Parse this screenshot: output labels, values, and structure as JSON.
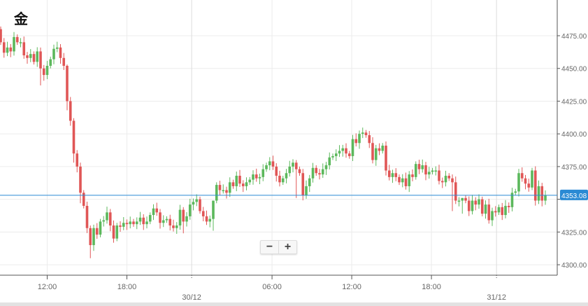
{
  "title": "金",
  "zoom_controls": {
    "minus": "−",
    "plus": "+"
  },
  "colors": {
    "up": "#5cb85c",
    "down": "#e05656",
    "price_line": "#2a8ad4",
    "grid": "#ececec",
    "axis": "#555555",
    "label": "#666666"
  },
  "chart_data": {
    "type": "candlestick",
    "interval": "15 min",
    "ylim": [
      4290,
      4480
    ],
    "yticks": [
      4300,
      4325,
      4350,
      4375,
      4400,
      4425,
      4450,
      4475
    ],
    "ytick_labels": [
      "4300.00",
      "4325.00",
      "4350.00",
      "4375.00",
      "4400.00",
      "4425.00",
      "4450.00",
      "4475.00"
    ],
    "xticks": [
      {
        "label": "12:00",
        "candle": 14,
        "major": false
      },
      {
        "label": "18:00",
        "candle": 38,
        "major": false
      },
      {
        "label": "30/12",
        "candle": 57.5,
        "major": true
      },
      {
        "label": "06:00",
        "candle": 81.7,
        "major": false
      },
      {
        "label": "12:00",
        "candle": 105.7,
        "major": false
      },
      {
        "label": "18:00",
        "candle": 129.7,
        "major": false
      },
      {
        "label": "31/12",
        "candle": 149.3,
        "major": true
      }
    ],
    "current_price": 4353.08,
    "current_price_label": "4353.08",
    "first_open": 4480,
    "closes": [
      4470,
      4462,
      4466,
      4463,
      4474,
      4470,
      4470,
      4460,
      4458,
      4461,
      4455,
      4463,
      4450,
      4445,
      4452,
      4457,
      4465,
      4466,
      4458,
      4452,
      4425,
      4410,
      4385,
      4375,
      4355,
      4345,
      4328,
      4315,
      4328,
      4323,
      4333,
      4334,
      4340,
      4330,
      4320,
      4330,
      4329,
      4332,
      4331,
      4333,
      4331,
      4333,
      4336,
      4331,
      4333,
      4338,
      4343,
      4340,
      4332,
      4334,
      4335,
      4330,
      4328,
      4330,
      4342,
      4333,
      4337,
      4346,
      4348,
      4350,
      4341,
      4337,
      4333,
      4335,
      4349,
      4361,
      4357,
      4357,
      4355,
      4363,
      4360,
      4368,
      4362,
      4360,
      4363,
      4365,
      4369,
      4366,
      4367,
      4373,
      4376,
      4379,
      4375,
      4368,
      4363,
      4366,
      4370,
      4375,
      4378,
      4373,
      4370,
      4353,
      4360,
      4366,
      4374,
      4370,
      4369,
      4373,
      4376,
      4382,
      4383,
      4385,
      4387,
      4389,
      4385,
      4383,
      4396,
      4393,
      4400,
      4401,
      4399,
      4393,
      4380,
      4389,
      4387,
      4391,
      4372,
      4367,
      4370,
      4367,
      4363,
      4366,
      4360,
      4369,
      4367,
      4377,
      4373,
      4376,
      4369,
      4371,
      4372,
      4372,
      4364,
      4363,
      4368,
      4366,
      4363,
      4349,
      4349,
      4351,
      4349,
      4341,
      4349,
      4346,
      4350,
      4339,
      4346,
      4334,
      4341,
      4340,
      4344,
      4338,
      4345,
      4344,
      4355,
      4356,
      4370,
      4366,
      4362,
      4359,
      4372,
      4349,
      4360,
      4349,
      4353
    ],
    "wicks": {
      "12": [
        4466,
        4437
      ],
      "27": [
        4330,
        4305
      ],
      "20": [
        4453,
        4418
      ],
      "22": [
        4412,
        4378
      ],
      "24": [
        4378,
        4347
      ],
      "89": [
        4380,
        4351
      ],
      "55": [
        4344,
        4324
      ],
      "64": [
        4349,
        4326
      ],
      "139": [
        4351,
        4339
      ],
      "136": [
        4369,
        4341
      ]
    }
  }
}
